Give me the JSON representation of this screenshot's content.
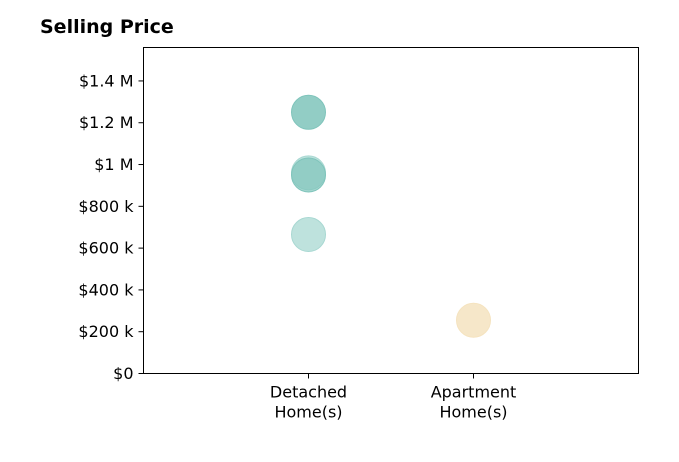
{
  "chart_data": {
    "type": "scatter",
    "title": "Selling Price",
    "xlabel": "",
    "ylabel": "",
    "categories": [
      [
        "Detached",
        "Home(s)"
      ],
      [
        "Apartment",
        "Home(s)"
      ]
    ],
    "ylim": [
      0,
      1560000
    ],
    "yticks": [
      0,
      200000,
      400000,
      600000,
      800000,
      1000000,
      1200000,
      1400000
    ],
    "ytick_labels": [
      "$0",
      "$200 k",
      "$400 k",
      "$600 k",
      "$800 k",
      "$1 M",
      "$1.2 M",
      "$1.4 M"
    ],
    "grid": false,
    "points": [
      {
        "category": 0,
        "y": 1250000,
        "color": "#7fc4bb",
        "opacity": 0.85
      },
      {
        "category": 0,
        "y": 960000,
        "color": "#a8d8d2",
        "opacity": 0.75
      },
      {
        "category": 0,
        "y": 950000,
        "color": "#7fc4bb",
        "opacity": 0.7
      },
      {
        "category": 0,
        "y": 665000,
        "color": "#a8d8d2",
        "opacity": 0.75
      },
      {
        "category": 1,
        "y": 255000,
        "color": "#f5e3bf",
        "opacity": 0.85
      }
    ]
  }
}
